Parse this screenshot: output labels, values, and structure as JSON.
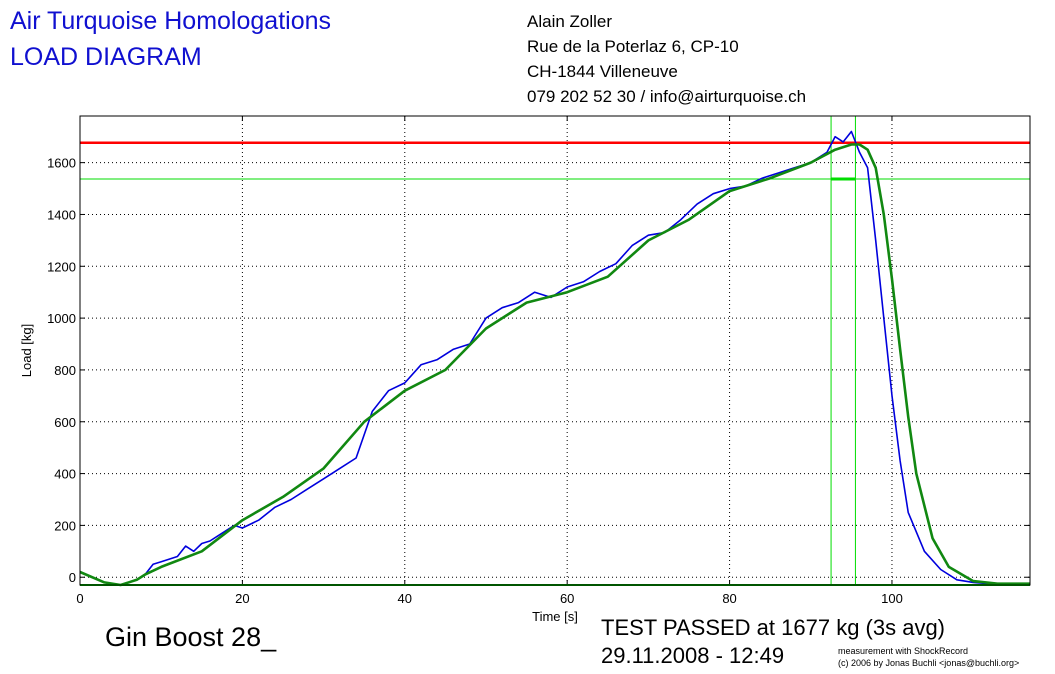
{
  "header": {
    "title_line1": "Air Turquoise Homologations",
    "title_line2": "LOAD DIAGRAM",
    "address": [
      "Alain Zoller",
      "Rue de la Poterlaz 6, CP-10",
      "CH-1844 Villeneuve",
      "079 202 52 30 / info@airturquoise.ch"
    ]
  },
  "footer": {
    "model": "Gin Boost 28_",
    "result": "TEST PASSED at 1677 kg (3s avg)",
    "datetime": "29.11.2008 - 12:49",
    "credit_line1": "measurement with ShockRecord",
    "credit_line2": "(c) 2006 by Jonas Buchli <jonas@buchli.org>"
  },
  "chart_data": {
    "type": "line",
    "xlabel": "Time [s]",
    "ylabel": "Load [kg]",
    "xlim": [
      0,
      117
    ],
    "ylim": [
      -30,
      1780
    ],
    "xticks": [
      0,
      20,
      40,
      60,
      80,
      100
    ],
    "yticks": [
      0,
      200,
      400,
      600,
      800,
      1000,
      1200,
      1400,
      1600
    ],
    "grid": true,
    "series": [
      {
        "color": "#0000dd",
        "x": [
          6,
          7,
          8,
          9,
          10,
          11,
          12,
          13,
          14,
          15,
          16,
          17,
          18,
          19,
          20,
          22,
          24,
          26,
          28,
          30,
          32,
          34,
          36,
          38,
          40,
          42,
          44,
          46,
          48,
          50,
          52,
          54,
          56,
          58,
          60,
          62,
          64,
          66,
          68,
          70,
          72,
          74,
          76,
          78,
          80,
          82,
          84,
          86,
          88,
          90,
          92,
          93,
          94,
          95,
          96,
          97,
          98,
          99,
          100,
          101,
          102,
          104,
          106,
          108,
          110,
          112,
          117
        ],
        "y": [
          -20,
          -10,
          10,
          50,
          60,
          70,
          80,
          120,
          100,
          130,
          140,
          160,
          180,
          200,
          190,
          220,
          270,
          300,
          340,
          380,
          420,
          460,
          640,
          720,
          750,
          820,
          840,
          880,
          900,
          1000,
          1040,
          1060,
          1100,
          1080,
          1120,
          1140,
          1180,
          1210,
          1280,
          1320,
          1330,
          1380,
          1440,
          1480,
          1500,
          1510,
          1540,
          1560,
          1580,
          1600,
          1640,
          1700,
          1680,
          1720,
          1640,
          1580,
          1300,
          1000,
          700,
          450,
          250,
          100,
          30,
          -10,
          -20,
          -25,
          -25
        ]
      },
      {
        "color": "#118811",
        "x": [
          0,
          3,
          5,
          7,
          8,
          10,
          15,
          20,
          25,
          30,
          35,
          40,
          45,
          50,
          55,
          60,
          65,
          70,
          75,
          80,
          85,
          90,
          93,
          95,
          96,
          97,
          98,
          99,
          100,
          101,
          102,
          103,
          105,
          107,
          110,
          113,
          117
        ],
        "y": [
          20,
          -20,
          -30,
          -10,
          10,
          40,
          100,
          220,
          310,
          420,
          600,
          720,
          800,
          960,
          1060,
          1100,
          1160,
          1300,
          1380,
          1490,
          1540,
          1600,
          1650,
          1670,
          1670,
          1650,
          1580,
          1400,
          1150,
          880,
          620,
          400,
          150,
          40,
          -15,
          -25,
          -25
        ]
      }
    ],
    "hlines": [
      {
        "value": 1677,
        "color": "#ff0000"
      },
      {
        "value": 1537,
        "color": "#00dd00"
      }
    ],
    "vlines": [
      {
        "value": 92.5,
        "color": "#00dd00"
      },
      {
        "value": 95.5,
        "color": "#00dd00"
      }
    ]
  }
}
